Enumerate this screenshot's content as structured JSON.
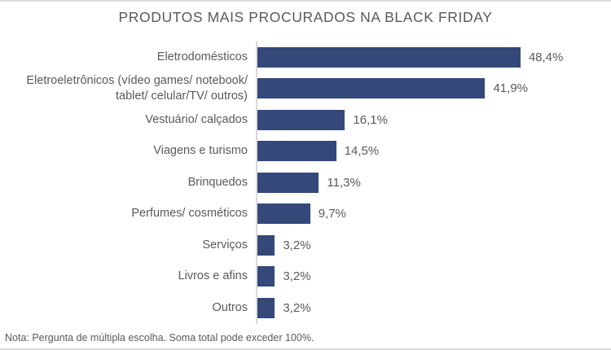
{
  "colors": {
    "bar": "#34487A",
    "text": "#595959",
    "axis_line": "#D9D9D9"
  },
  "chart_data": {
    "type": "bar",
    "orientation": "horizontal",
    "title": "PRODUTOS MAIS PROCURADOS NA BLACK FRIDAY",
    "categories": [
      "Eletrodomésticos",
      "Eletroeletrônicos (vídeo games/ notebook/ tablet/ celular/TV/ outros)",
      "Vestuário/ calçados",
      "Viagens e turismo",
      "Brinquedos",
      "Perfumes/ cosméticos",
      "Serviços",
      "Livros e afins",
      "Outros"
    ],
    "values": [
      48.4,
      41.9,
      16.1,
      14.5,
      11.3,
      9.7,
      3.2,
      3.2,
      3.2
    ],
    "value_labels": [
      "48,4%",
      "41,9%",
      "16,1%",
      "14,5%",
      "11,3%",
      "9,7%",
      "3,2%",
      "3,2%",
      "3,2%"
    ],
    "xlim": [
      0,
      50
    ],
    "grid": false,
    "legend": "none",
    "data_labels_position": "outside-end",
    "note": "Nota: Pergunta de múltipla escolha. Soma total pode exceder 100%."
  }
}
